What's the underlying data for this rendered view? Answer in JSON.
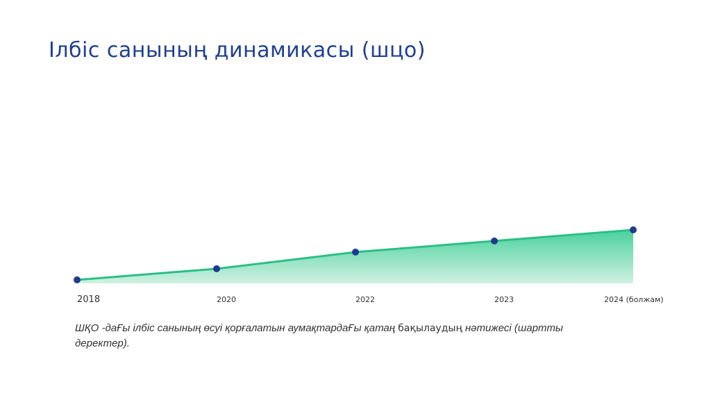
{
  "title": "Ілбіс санының динамикасы (шцо)",
  "caption": {
    "part1": "ШҚО -даҒы ілбіс санының өсуі қорғалатын аумақтардаҒы қатаң ",
    "part2": "бақылаудың",
    "part3": "  нәтижесі (шартты деректер)."
  },
  "chart_data": {
    "type": "area",
    "categories": [
      "2018",
      "2020",
      "2022",
      "2023",
      "2024 (болжам)"
    ],
    "values": [
      0,
      20,
      50,
      70,
      90
    ],
    "title": "Ілбіс санының динамикасы (шцо)",
    "xlabel": "",
    "ylabel": "",
    "ylim": [
      0,
      100
    ],
    "grid": false,
    "legend": "none",
    "colors": {
      "line": "#2bbf85",
      "fill_top": "#3ecf95",
      "fill_bottom": "#c9efdf",
      "marker": "#1f3a8f"
    }
  }
}
